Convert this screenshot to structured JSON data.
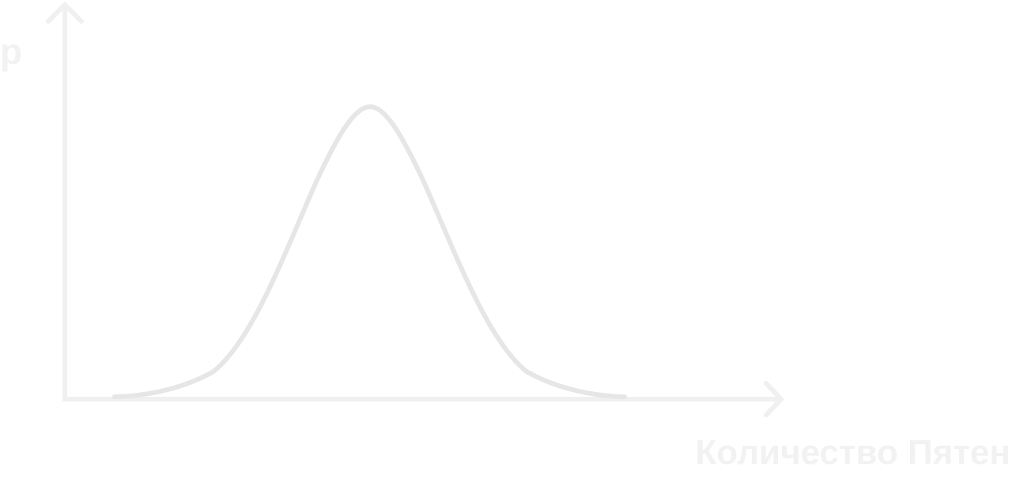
{
  "diagram": {
    "y_axis_label": "p",
    "x_axis_label": "Количество Пятен",
    "curve": "bell-shaped distribution curve",
    "colors": {
      "axis": "#f0f0f0",
      "curve": "#e6e6e6",
      "label": "#f2f2f2"
    }
  }
}
